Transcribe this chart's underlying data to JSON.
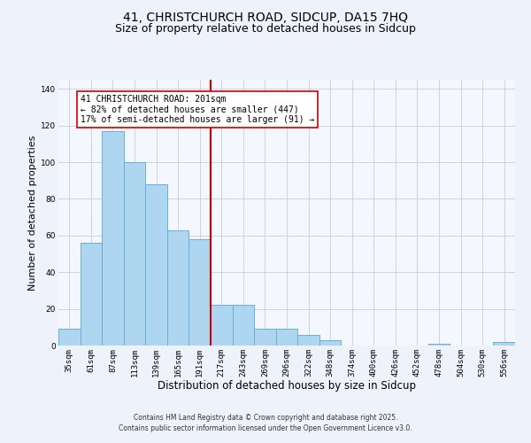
{
  "title": "41, CHRISTCHURCH ROAD, SIDCUP, DA15 7HQ",
  "subtitle": "Size of property relative to detached houses in Sidcup",
  "xlabel": "Distribution of detached houses by size in Sidcup",
  "ylabel": "Number of detached properties",
  "bar_labels": [
    "35sqm",
    "61sqm",
    "87sqm",
    "113sqm",
    "139sqm",
    "165sqm",
    "191sqm",
    "217sqm",
    "243sqm",
    "269sqm",
    "296sqm",
    "322sqm",
    "348sqm",
    "374sqm",
    "400sqm",
    "426sqm",
    "452sqm",
    "478sqm",
    "504sqm",
    "530sqm",
    "556sqm"
  ],
  "bar_values": [
    9,
    56,
    117,
    100,
    88,
    63,
    58,
    22,
    22,
    9,
    9,
    6,
    3,
    0,
    0,
    0,
    0,
    1,
    0,
    0,
    2
  ],
  "bar_color": "#aed6f0",
  "bar_edgecolor": "#6aaed6",
  "vline_x": 6.5,
  "vline_color": "#cc0000",
  "ylim": [
    0,
    145
  ],
  "yticks": [
    0,
    20,
    40,
    60,
    80,
    100,
    120,
    140
  ],
  "annotation_title": "41 CHRISTCHURCH ROAD: 201sqm",
  "annotation_line1": "← 82% of detached houses are smaller (447)",
  "annotation_line2": "17% of semi-detached houses are larger (91) →",
  "bg_color": "#eef2fb",
  "plot_bg_color": "#f5f7fe",
  "grid_color": "#c8cee0",
  "footer1": "Contains HM Land Registry data © Crown copyright and database right 2025.",
  "footer2": "Contains public sector information licensed under the Open Government Licence v3.0.",
  "title_fontsize": 10,
  "subtitle_fontsize": 9,
  "tick_fontsize": 6.5,
  "xlabel_fontsize": 8.5,
  "ylabel_fontsize": 8,
  "annotation_fontsize": 7,
  "footer_fontsize": 5.5
}
